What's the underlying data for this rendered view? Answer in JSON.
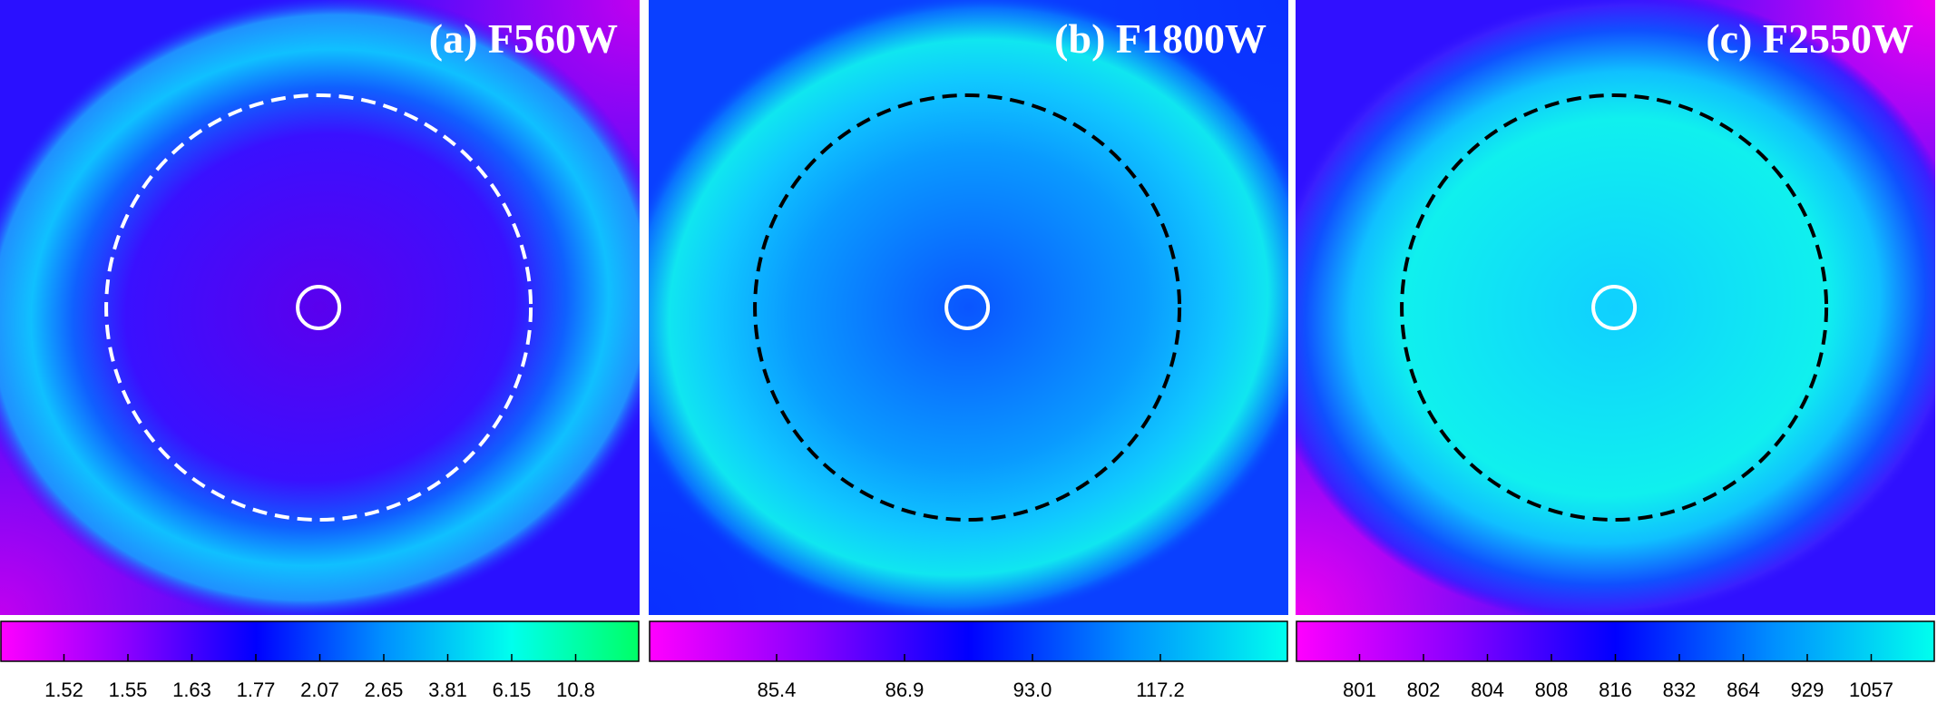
{
  "chart_data": [
    {
      "type": "image",
      "title": "(a) F560W",
      "colormap": [
        "#ff00ff",
        "#8a00ff",
        "#0000ff",
        "#0090ff",
        "#00ffee",
        "#00ff66"
      ],
      "cticks": [
        1.52,
        1.55,
        1.63,
        1.77,
        2.07,
        2.65,
        3.81,
        6.15,
        10.8
      ]
    },
    {
      "type": "image",
      "title": "(b) F1800W",
      "colormap": [
        "#ff00ff",
        "#8a00ff",
        "#0000ff",
        "#0090ff",
        "#00ffee"
      ],
      "cticks": [
        85.4,
        86.9,
        {
          "value": 93,
          "label": "93.0"
        },
        117.2
      ]
    },
    {
      "type": "image",
      "title": "(c) F2550W",
      "colormap": [
        "#ff00ff",
        "#8a00ff",
        "#0000ff",
        "#0090ff",
        "#00ffee"
      ],
      "cticks": [
        801,
        802,
        804,
        808,
        816,
        832,
        864,
        929,
        1057
      ]
    }
  ]
}
